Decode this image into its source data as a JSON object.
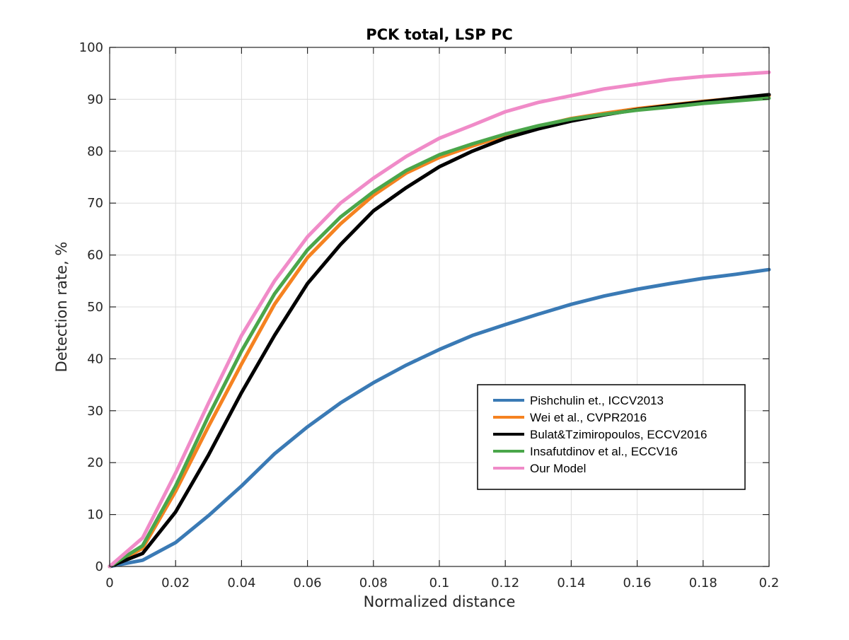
{
  "chart_data": {
    "type": "line",
    "title": "PCK total, LSP PC",
    "xlabel": "Normalized distance",
    "ylabel": "Detection rate, %",
    "xlim": [
      0,
      0.2
    ],
    "ylim": [
      0,
      100
    ],
    "x_ticks": [
      0,
      0.02,
      0.04,
      0.06,
      0.08,
      0.1,
      0.12,
      0.14,
      0.16,
      0.18,
      0.2
    ],
    "x_tick_labels": [
      "0",
      "0.02",
      "0.04",
      "0.06",
      "0.08",
      "0.1",
      "0.12",
      "0.14",
      "0.16",
      "0.18",
      "0.2"
    ],
    "y_ticks": [
      0,
      10,
      20,
      30,
      40,
      50,
      60,
      70,
      80,
      90,
      100
    ],
    "y_tick_labels": [
      "0",
      "10",
      "20",
      "30",
      "40",
      "50",
      "60",
      "70",
      "80",
      "90",
      "100"
    ],
    "grid": true,
    "legend_position": "bottom-right",
    "x": [
      0,
      0.01,
      0.02,
      0.03,
      0.04,
      0.05,
      0.06,
      0.07,
      0.08,
      0.09,
      0.1,
      0.11,
      0.12,
      0.13,
      0.14,
      0.15,
      0.16,
      0.17,
      0.18,
      0.19,
      0.2
    ],
    "series": [
      {
        "name": "Pishchulin et., ICCV2013",
        "color": "#3a7ab5",
        "values": [
          0,
          1.2,
          4.6,
          9.8,
          15.5,
          21.7,
          26.9,
          31.5,
          35.4,
          38.8,
          41.8,
          44.5,
          46.6,
          48.6,
          50.5,
          52.1,
          53.4,
          54.5,
          55.5,
          56.3,
          57.2
        ]
      },
      {
        "name": "Wei et al., CVPR2016",
        "color": "#f58220",
        "values": [
          0,
          3.5,
          14.5,
          27.0,
          39.0,
          50.5,
          59.5,
          66.0,
          71.5,
          75.8,
          78.8,
          81.0,
          83.0,
          84.8,
          86.3,
          87.3,
          88.2,
          88.9,
          89.6,
          90.2,
          90.7
        ]
      },
      {
        "name": "Bulat&Tzimiropoulos, ECCV2016",
        "color": "#000000",
        "values": [
          0,
          2.5,
          10.5,
          21.5,
          33.5,
          44.5,
          54.5,
          62.0,
          68.5,
          73.0,
          77.0,
          80.0,
          82.5,
          84.3,
          85.8,
          87.0,
          88.0,
          88.8,
          89.5,
          90.2,
          90.9
        ]
      },
      {
        "name": "Insafutdinov et al., ECCV16",
        "color": "#4aa64a",
        "values": [
          0,
          4.0,
          15.5,
          29.0,
          41.5,
          52.5,
          61.0,
          67.3,
          72.2,
          76.3,
          79.3,
          81.4,
          83.3,
          84.9,
          86.2,
          87.1,
          87.9,
          88.5,
          89.2,
          89.7,
          90.2
        ]
      },
      {
        "name": "Our Model",
        "color": "#f08bc8",
        "values": [
          0,
          5.5,
          18.0,
          31.5,
          44.5,
          55.0,
          63.5,
          70.0,
          74.8,
          79.0,
          82.5,
          85.0,
          87.6,
          89.4,
          90.7,
          92.0,
          92.9,
          93.8,
          94.4,
          94.8,
          95.2
        ]
      }
    ]
  }
}
